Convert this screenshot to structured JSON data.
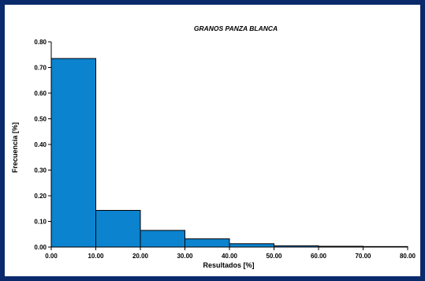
{
  "chart_data": {
    "type": "bar",
    "title": "GRANOS PANZA BLANCA",
    "xlabel": "Resultados [%]",
    "ylabel": "Frecuencia [%]",
    "bins": [
      {
        "from": 0,
        "to": 10,
        "value": 0.735
      },
      {
        "from": 10,
        "to": 20,
        "value": 0.143
      },
      {
        "from": 20,
        "to": 30,
        "value": 0.065
      },
      {
        "from": 30,
        "to": 40,
        "value": 0.032
      },
      {
        "from": 40,
        "to": 50,
        "value": 0.013
      },
      {
        "from": 50,
        "to": 60,
        "value": 0.005
      },
      {
        "from": 60,
        "to": 70,
        "value": 0.003
      },
      {
        "from": 70,
        "to": 80,
        "value": 0.002
      }
    ],
    "xlim": [
      0,
      80
    ],
    "ylim": [
      0,
      0.8
    ],
    "x_ticks": [
      "0.00",
      "10.00",
      "20.00",
      "30.00",
      "40.00",
      "50.00",
      "60.00",
      "70.00",
      "80.00"
    ],
    "y_ticks": [
      "0.00",
      "0.10",
      "0.20",
      "0.30",
      "0.40",
      "0.50",
      "0.60",
      "0.70",
      "0.80"
    ],
    "bar_color": "#0b83cf",
    "grid": false
  },
  "frame_color": "#0a2a6b"
}
